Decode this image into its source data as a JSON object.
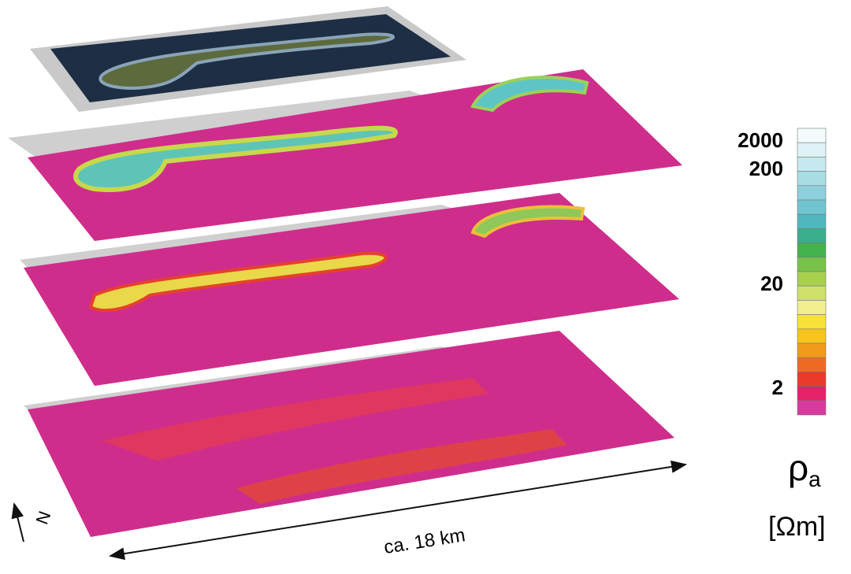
{
  "colorbar": {
    "ticks": [
      2000,
      200,
      20,
      2
    ],
    "colors": [
      "#f4fbfc",
      "#dff2f6",
      "#c6e9ef",
      "#a9dde6",
      "#8dd0dc",
      "#6fc4cf",
      "#4fb7bd",
      "#3aae8c",
      "#45b24e",
      "#78c24a",
      "#a6d04e",
      "#cfe06a",
      "#f1ef8e",
      "#f8e23a",
      "#f6c41c",
      "#f29a1c",
      "#ee6a22",
      "#e93a2c",
      "#e7206a",
      "#d93a9e"
    ],
    "symbol": "ρ",
    "subscript": "a",
    "unit": "[Ωm]"
  },
  "scale_label": "ca. 18 km",
  "north_label": "N"
}
